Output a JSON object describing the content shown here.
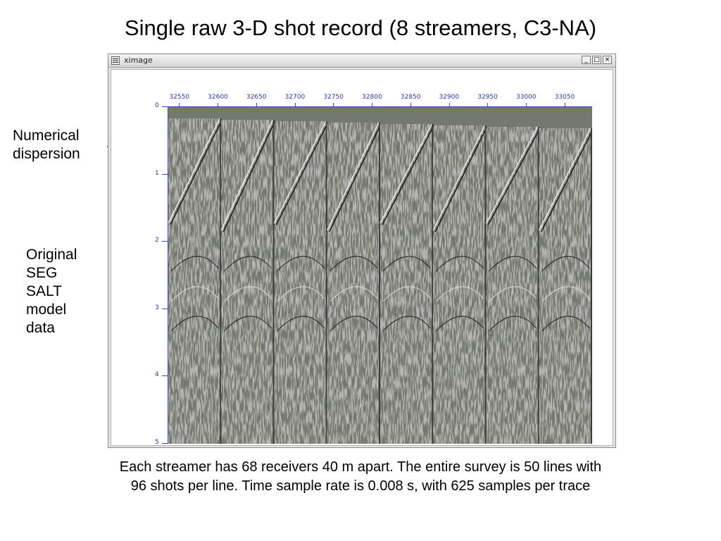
{
  "slide": {
    "title": "Single raw 3-D shot record (8 streamers, C3-NA)",
    "label_dispersion_line1": "Numerical",
    "label_dispersion_line2": "dispersion",
    "label_original": [
      "Original",
      "SEG",
      "SALT",
      "model",
      "data"
    ],
    "caption_line1": "Each streamer has 68 receivers 40 m apart. The entire survey is 50 lines with",
    "caption_line2": "96 shots per line.  Time sample rate is 0.008 s, with 625 samples per trace"
  },
  "window": {
    "title": "ximage",
    "min_glyph": "_",
    "max_glyph": "□",
    "close_glyph": "×"
  },
  "plot": {
    "x_ticks": [
      "32550",
      "32600",
      "32650",
      "32700",
      "32750",
      "32800",
      "32850",
      "32900",
      "32950",
      "33000",
      "33050"
    ],
    "y_ticks": [
      "0",
      "1",
      "2",
      "3",
      "4",
      "5"
    ],
    "x_range": [
      32535,
      33085
    ],
    "y_range": [
      0,
      5
    ],
    "streamer_count": 8,
    "colors": {
      "background": "#75786f",
      "axis": "#3a4ac0",
      "arrow": "#000000"
    }
  }
}
